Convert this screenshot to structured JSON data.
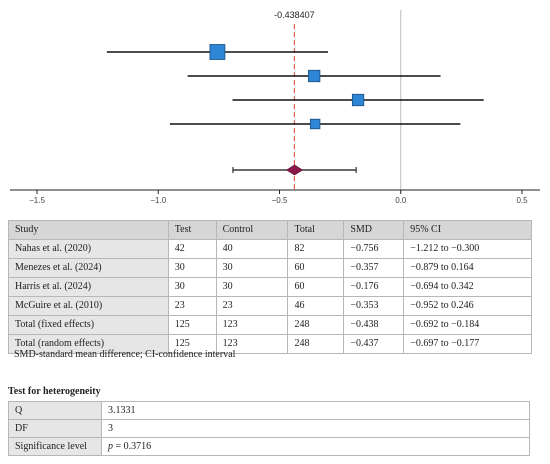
{
  "chart_data": {
    "type": "forest",
    "pooled_label": "-0.438407",
    "ref_line": 0.0,
    "pooled_line": -0.438407,
    "xlim": [
      -1.5,
      0.5
    ],
    "x_ticks": [
      -1.5,
      -1.0,
      -0.5,
      0.0,
      0.5
    ],
    "x_tick_labels": [
      "−1.5",
      "−1.0",
      "−0.5",
      "0.0",
      "0.5"
    ],
    "studies": [
      {
        "smd": -0.756,
        "lo": -1.212,
        "hi": -0.3,
        "weight": 82
      },
      {
        "smd": -0.357,
        "lo": -0.879,
        "hi": 0.164,
        "weight": 60
      },
      {
        "smd": -0.176,
        "lo": -0.694,
        "hi": 0.342,
        "weight": 60
      },
      {
        "smd": -0.353,
        "lo": -0.952,
        "hi": 0.246,
        "weight": 46
      }
    ],
    "pooled": {
      "smd": -0.438,
      "lo": -0.692,
      "hi": -0.184
    },
    "colors": {
      "box": "#2f86d6",
      "box_border": "#1b4f80",
      "diamond": "#8b1a4a",
      "pooled_line": "#e0604e",
      "ref_line": "#bbbbbb"
    }
  },
  "table": {
    "headers": [
      "Study",
      "Test",
      "Control",
      "Total",
      "SMD",
      "95% CI"
    ],
    "rows": [
      [
        "Nahas et al. (2020)",
        "42",
        "40",
        "82",
        "−0.756",
        "−1.212 to −0.300"
      ],
      [
        "Menezes et al. (2024)",
        "30",
        "30",
        "60",
        "−0.357",
        "−0.879 to 0.164"
      ],
      [
        "Harris et al. (2024)",
        "30",
        "30",
        "60",
        "−0.176",
        "−0.694 to 0.342"
      ],
      [
        "McGuire et al. (2010)",
        "23",
        "23",
        "46",
        "−0.353",
        "−0.952 to 0.246"
      ],
      [
        "Total (fixed effects)",
        "125",
        "123",
        "248",
        "−0.438",
        "−0.692 to −0.184"
      ],
      [
        "Total (random effects)",
        "125",
        "123",
        "248",
        "−0.437",
        "−0.697 to −0.177"
      ]
    ]
  },
  "footnote": "SMD-standard mean difference; CI-confidence interval",
  "heterogeneity": {
    "title": "Test for heterogeneity",
    "q_label": "Q",
    "q_value": "3.1331",
    "df_label": "DF",
    "df_value": "3",
    "sig_label": "Significance level",
    "sig_p": "p",
    "sig_value": " = 0.3716"
  }
}
